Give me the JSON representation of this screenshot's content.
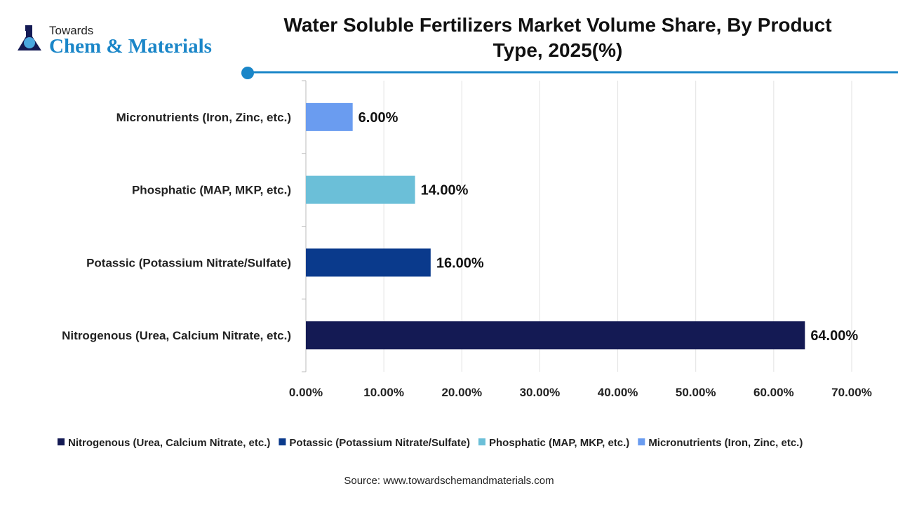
{
  "logo": {
    "line1": "Towards",
    "line2": "Chem & Materials"
  },
  "title": "Water Soluble Fertilizers Market Volume Share, By Product Type, 2025(%)",
  "source": "Source: www.towardschemandmaterials.com",
  "colors": {
    "accent": "#1a86c8"
  },
  "chart_data": {
    "type": "bar",
    "orientation": "horizontal",
    "title": "Water Soluble Fertilizers Market Volume Share, By Product Type, 2025(%)",
    "categories": [
      "Micronutrients (Iron, Zinc, etc.)",
      "Phosphatic (MAP, MKP, etc.)",
      "Potassic (Potassium Nitrate/Sulfate)",
      "Nitrogenous (Urea, Calcium Nitrate, etc.)"
    ],
    "values": [
      6,
      14,
      16,
      64
    ],
    "data_labels": [
      "6.00%",
      "14.00%",
      "16.00%",
      "64.00%"
    ],
    "colors": [
      "#6a9cf0",
      "#6bbfd8",
      "#0a3a8c",
      "#141a54"
    ],
    "xlim": [
      0,
      70
    ],
    "xticks": [
      "0.00%",
      "10.00%",
      "20.00%",
      "30.00%",
      "40.00%",
      "50.00%",
      "60.00%",
      "70.00%"
    ],
    "grid": true,
    "legend_position": "bottom",
    "legend": [
      {
        "name": "Nitrogenous (Urea, Calcium Nitrate, etc.)",
        "color": "#141a54"
      },
      {
        "name": "Potassic (Potassium Nitrate/Sulfate)",
        "color": "#0a3a8c"
      },
      {
        "name": "Phosphatic (MAP, MKP, etc.)",
        "color": "#6bbfd8"
      },
      {
        "name": "Micronutrients (Iron, Zinc, etc.)",
        "color": "#6a9cf0"
      }
    ]
  }
}
